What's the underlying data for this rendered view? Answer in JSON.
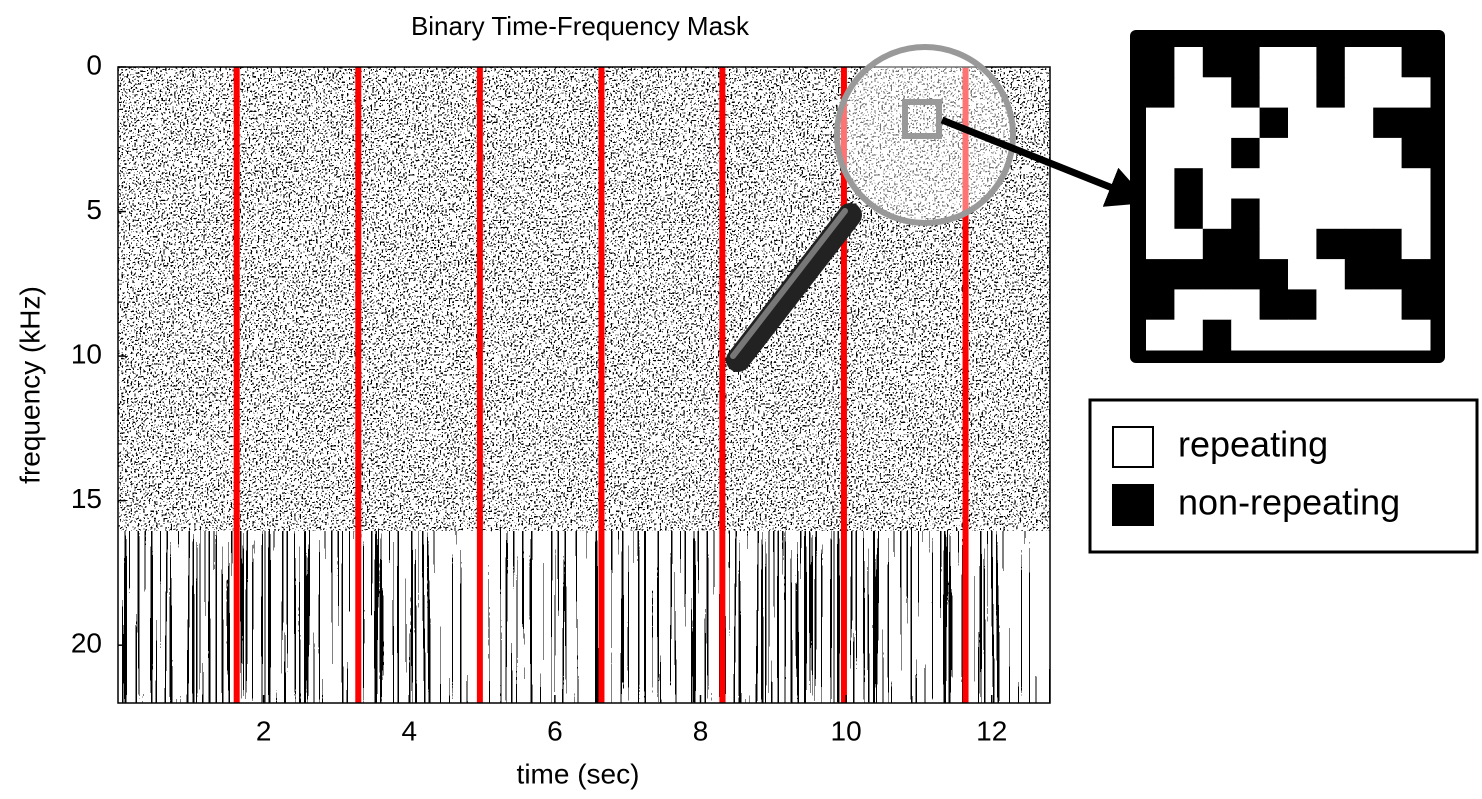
{
  "chart_data": {
    "type": "mask",
    "title": "Binary Time-Frequency Mask",
    "xlabel": "time (sec)",
    "ylabel": "frequency (kHz)",
    "xlim": [
      0,
      12.8
    ],
    "xticks": [
      2,
      4,
      6,
      8,
      10,
      12
    ],
    "ylim": [
      0,
      22
    ],
    "yticks": [
      0,
      5,
      10,
      15,
      20
    ],
    "y_inverted": true,
    "markers": [
      1.63,
      3.3,
      4.97,
      6.64,
      8.3,
      9.97,
      11.64
    ],
    "marker_color": "#ff0000",
    "legend": [
      {
        "name": "repeating",
        "color": "#ffffff"
      },
      {
        "name": "non-repeating",
        "color": "#000000"
      }
    ],
    "inset": [
      [
        1,
        0,
        1,
        1,
        0,
        0,
        1,
        0,
        0,
        1
      ],
      [
        1,
        0,
        0,
        1,
        0,
        0,
        1,
        0,
        0,
        0
      ],
      [
        0,
        0,
        0,
        0,
        1,
        0,
        0,
        0,
        1,
        1
      ],
      [
        0,
        0,
        0,
        1,
        0,
        0,
        0,
        0,
        0,
        1
      ],
      [
        0,
        1,
        0,
        0,
        0,
        0,
        0,
        0,
        0,
        0
      ],
      [
        0,
        1,
        0,
        1,
        0,
        0,
        0,
        0,
        0,
        0
      ],
      [
        0,
        0,
        1,
        1,
        0,
        0,
        1,
        1,
        1,
        0
      ],
      [
        1,
        1,
        1,
        1,
        1,
        0,
        0,
        1,
        1,
        1
      ],
      [
        1,
        0,
        0,
        0,
        1,
        1,
        0,
        0,
        0,
        1
      ],
      [
        0,
        0,
        1,
        0,
        0,
        0,
        0,
        0,
        0,
        0
      ]
    ]
  }
}
